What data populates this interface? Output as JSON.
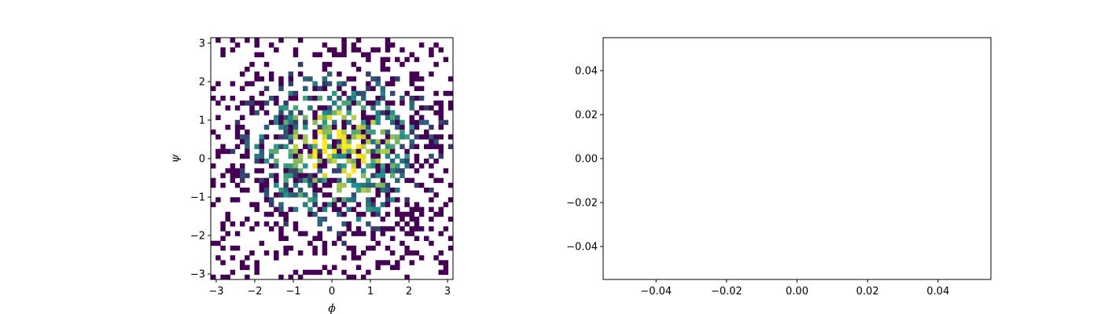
{
  "chart_data": [
    {
      "type": "heatmap",
      "title": "",
      "xlabel": "ϕ",
      "ylabel": "ψ",
      "xlim": [
        -3.14159,
        3.14159
      ],
      "ylim": [
        -3.14159,
        3.14159
      ],
      "x_ticks": [
        -3,
        -2,
        -1,
        0,
        1,
        2,
        3
      ],
      "y_ticks": [
        -3,
        -2,
        -1,
        0,
        1,
        2,
        3
      ],
      "x_tick_labels": [
        "−3",
        "−2",
        "−1",
        "0",
        "1",
        "2",
        "3"
      ],
      "y_tick_labels": [
        "−3",
        "−2",
        "−1",
        "0",
        "1",
        "2",
        "3"
      ],
      "bins": 50,
      "colormap": "viridis",
      "empty_bins": "white",
      "density_center": [
        0.2,
        0.2
      ],
      "grid": false,
      "colors": {
        "low": "#440154",
        "mid": "#21918c",
        "high": "#fde725"
      }
    },
    {
      "type": "scatter",
      "title": "",
      "xlabel": "",
      "ylabel": "",
      "x": [],
      "y": [],
      "xlim": [
        -0.055,
        0.055
      ],
      "ylim": [
        -0.055,
        0.055
      ],
      "x_ticks": [
        -0.04,
        -0.02,
        0.0,
        0.02,
        0.04
      ],
      "y_ticks": [
        -0.04,
        -0.02,
        0.0,
        0.02,
        0.04
      ],
      "x_tick_labels": [
        "−0.04",
        "−0.02",
        "0.00",
        "0.02",
        "0.04"
      ],
      "y_tick_labels": [
        "−0.04",
        "−0.02",
        "0.00",
        "0.02",
        "0.04"
      ],
      "grid": false
    }
  ]
}
